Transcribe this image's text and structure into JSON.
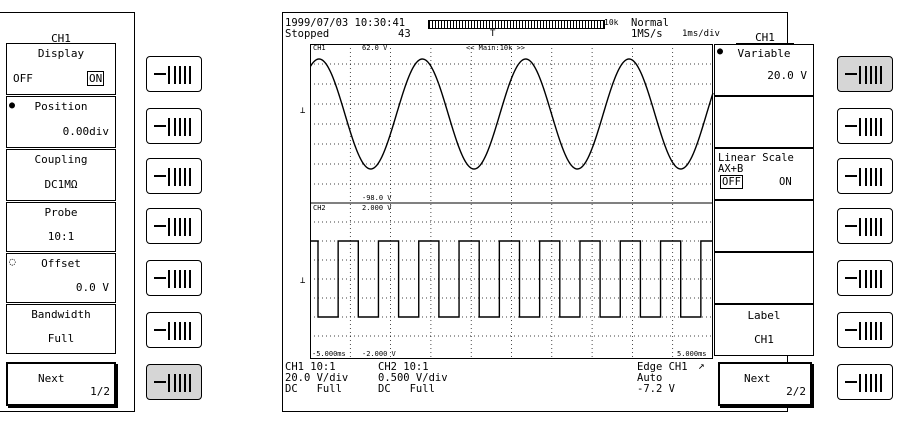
{
  "left_menu": {
    "title": "CH1",
    "display": {
      "label": "Display",
      "off": "OFF",
      "on": "ON"
    },
    "position": {
      "label": "Position",
      "value": "0.00div"
    },
    "coupling": {
      "label": "Coupling",
      "value": "DC1MΩ"
    },
    "probe": {
      "label": "Probe",
      "value": "10:1"
    },
    "offset": {
      "label": "Offset",
      "value": "0.0 V"
    },
    "bandwidth": {
      "label": "Bandwidth",
      "value": "Full"
    },
    "next": {
      "label": "Next",
      "page": "1/2"
    }
  },
  "header": {
    "datetime": "1999/07/03 10:30:41",
    "state": "Stopped",
    "count": "43",
    "record_len": "10k",
    "trigger_mode": "Normal",
    "sample_rate": "1MS/s",
    "timebase": "1ms/div"
  },
  "screen": {
    "ch1_label": "CH1",
    "ch1_top": "62.0 V",
    "main_label": "<< Main:10k >>",
    "ch1_bottom": "-98.0 V",
    "ch2_label": "CH2",
    "ch2_top": "2.000 V",
    "time_left": "-5.000ms",
    "ch2_bottom": "-2.000 V",
    "time_right": "5.000ms"
  },
  "footer": {
    "ch1_probe": "CH1 10:1",
    "ch1_vdiv": "20.0 V/div",
    "ch1_coupling": "DC   Full",
    "ch2_probe": "CH2 10:1",
    "ch2_vdiv": "0.500 V/div",
    "ch2_coupling": "DC   Full",
    "trig_type": "Edge CH1",
    "trig_mode": "Auto",
    "trig_level": "-7.2 V"
  },
  "right_menu": {
    "title": "CH1",
    "variable": {
      "label": "Variable",
      "value": "20.0 V"
    },
    "linear_scale": {
      "label": "Linear Scale",
      "sub": "AX+B",
      "off": "OFF",
      "on": "ON"
    },
    "label": {
      "label": "Label",
      "value": "CH1"
    },
    "next": {
      "label": "Next",
      "page": "2/2"
    }
  },
  "waveform": {
    "ch1": "sine, ~4 cycles over 10 div",
    "ch2": "square wave, ~10 cycles over 10 div"
  }
}
